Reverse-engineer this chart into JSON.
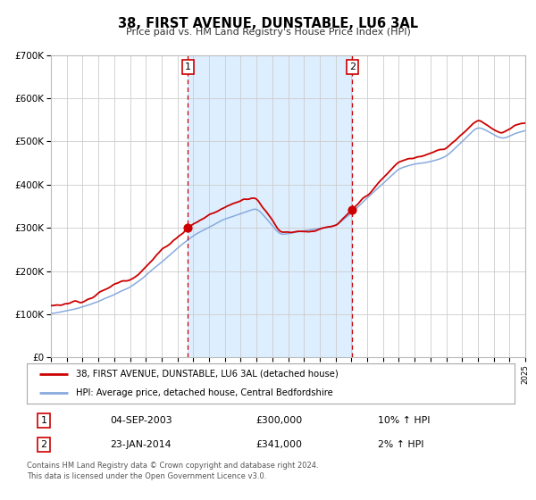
{
  "title": "38, FIRST AVENUE, DUNSTABLE, LU6 3AL",
  "subtitle": "Price paid vs. HM Land Registry's House Price Index (HPI)",
  "legend_line1": "38, FIRST AVENUE, DUNSTABLE, LU6 3AL (detached house)",
  "legend_line2": "HPI: Average price, detached house, Central Bedfordshire",
  "sale1_date": "04-SEP-2003",
  "sale1_price": "£300,000",
  "sale1_hpi": "10% ↑ HPI",
  "sale1_year": 2003.67,
  "sale1_value": 300000,
  "sale2_date": "23-JAN-2014",
  "sale2_price": "£341,000",
  "sale2_hpi": "2% ↑ HPI",
  "sale2_year": 2014.06,
  "sale2_value": 341000,
  "red_color": "#cc0000",
  "blue_color": "#88aadd",
  "shade_color": "#ddeeff",
  "vline_color": "#cc0000",
  "bg_color": "#ffffff",
  "grid_color": "#cccccc",
  "footer": "Contains HM Land Registry data © Crown copyright and database right 2024.\nThis data is licensed under the Open Government Licence v3.0.",
  "ylim": [
    0,
    700000
  ],
  "xlim_start": 1995,
  "xlim_end": 2025
}
